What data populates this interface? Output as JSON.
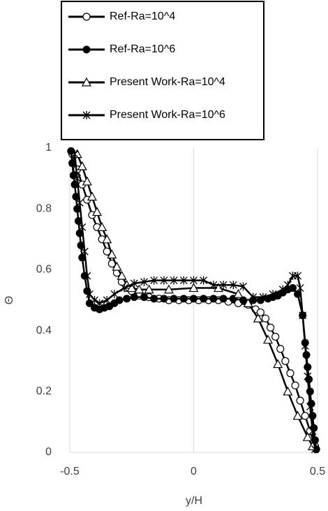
{
  "chart_data": {
    "type": "line",
    "xlabel": "y/H",
    "ylabel": "Θ",
    "xlim": [
      -0.5,
      0.5
    ],
    "xticks": [
      -0.5,
      0,
      0.5
    ],
    "ylim": [
      0,
      1
    ],
    "yticks": [
      0,
      0.2,
      0.4,
      0.6,
      0.8,
      1
    ],
    "grid": "x",
    "legend": "top",
    "series": [
      {
        "name": "Ref-Ra=10^4",
        "color": "#000000",
        "marker": "circle-open",
        "x": [
          -0.49,
          -0.47,
          -0.45,
          -0.43,
          -0.41,
          -0.39,
          -0.37,
          -0.35,
          -0.33,
          -0.31,
          -0.29,
          -0.27,
          -0.25,
          -0.22,
          -0.18,
          -0.14,
          -0.1,
          -0.06,
          -0.02,
          0.02,
          0.06,
          0.1,
          0.14,
          0.18,
          0.22,
          0.25,
          0.27,
          0.29,
          0.31,
          0.33,
          0.35,
          0.37,
          0.39,
          0.41,
          0.43,
          0.45,
          0.47,
          0.49
        ],
        "values": [
          0.98,
          0.93,
          0.88,
          0.83,
          0.78,
          0.74,
          0.7,
          0.66,
          0.62,
          0.59,
          0.56,
          0.54,
          0.53,
          0.515,
          0.51,
          0.505,
          0.5,
          0.5,
          0.5,
          0.5,
          0.5,
          0.5,
          0.495,
          0.49,
          0.485,
          0.47,
          0.46,
          0.44,
          0.41,
          0.38,
          0.34,
          0.3,
          0.26,
          0.22,
          0.17,
          0.12,
          0.07,
          0.02
        ]
      },
      {
        "name": "Ref-Ra=10^6",
        "color": "#000000",
        "marker": "circle-filled",
        "x": [
          -0.495,
          -0.49,
          -0.485,
          -0.48,
          -0.475,
          -0.47,
          -0.465,
          -0.46,
          -0.455,
          -0.45,
          -0.44,
          -0.43,
          -0.42,
          -0.4,
          -0.38,
          -0.36,
          -0.34,
          -0.32,
          -0.3,
          -0.27,
          -0.24,
          -0.2,
          -0.16,
          -0.12,
          -0.08,
          -0.04,
          0,
          0.04,
          0.08,
          0.12,
          0.16,
          0.2,
          0.24,
          0.27,
          0.3,
          0.32,
          0.34,
          0.36,
          0.38,
          0.4,
          0.42,
          0.44,
          0.45,
          0.455,
          0.46,
          0.465,
          0.47,
          0.475,
          0.48,
          0.485,
          0.49,
          0.495
        ],
        "values": [
          0.99,
          0.95,
          0.91,
          0.88,
          0.84,
          0.8,
          0.76,
          0.72,
          0.68,
          0.64,
          0.58,
          0.53,
          0.49,
          0.475,
          0.47,
          0.475,
          0.48,
          0.49,
          0.5,
          0.505,
          0.51,
          0.51,
          0.505,
          0.505,
          0.505,
          0.505,
          0.505,
          0.505,
          0.505,
          0.505,
          0.505,
          0.5,
          0.5,
          0.5,
          0.505,
          0.51,
          0.515,
          0.525,
          0.535,
          0.54,
          0.52,
          0.45,
          0.36,
          0.32,
          0.28,
          0.24,
          0.2,
          0.16,
          0.12,
          0.08,
          0.04,
          0.01
        ]
      },
      {
        "name": "Present Work-Ra=10^4",
        "color": "#000000",
        "marker": "triangle-open",
        "x": [
          -0.47,
          -0.45,
          -0.43,
          -0.41,
          -0.39,
          -0.37,
          -0.35,
          -0.33,
          -0.31,
          -0.29,
          -0.27,
          -0.25,
          -0.22,
          -0.18,
          -0.1,
          0,
          0.1,
          0.18,
          0.22,
          0.26,
          0.3,
          0.34,
          0.38,
          0.42,
          0.46,
          0.48
        ],
        "values": [
          0.98,
          0.94,
          0.89,
          0.84,
          0.79,
          0.74,
          0.7,
          0.65,
          0.61,
          0.58,
          0.55,
          0.54,
          0.535,
          0.535,
          0.535,
          0.54,
          0.54,
          0.52,
          0.49,
          0.44,
          0.37,
          0.29,
          0.2,
          0.12,
          0.05,
          0.02
        ]
      },
      {
        "name": "Present Work-Ra=10^6",
        "color": "#000000",
        "marker": "star",
        "x": [
          -0.48,
          -0.47,
          -0.46,
          -0.45,
          -0.44,
          -0.43,
          -0.42,
          -0.4,
          -0.38,
          -0.35,
          -0.32,
          -0.28,
          -0.24,
          -0.2,
          -0.16,
          -0.12,
          -0.08,
          -0.04,
          0,
          0.04,
          0.08,
          0.12,
          0.16,
          0.2,
          0.24,
          0.28,
          0.32,
          0.36,
          0.38,
          0.4,
          0.42,
          0.43,
          0.44,
          0.45,
          0.46,
          0.47,
          0.48,
          0.49
        ],
        "values": [
          0.98,
          0.9,
          0.82,
          0.74,
          0.66,
          0.58,
          0.52,
          0.5,
          0.49,
          0.5,
          0.52,
          0.54,
          0.555,
          0.56,
          0.565,
          0.565,
          0.565,
          0.565,
          0.565,
          0.565,
          0.55,
          0.55,
          0.55,
          0.545,
          0.51,
          0.51,
          0.52,
          0.535,
          0.55,
          0.58,
          0.58,
          0.54,
          0.45,
          0.35,
          0.25,
          0.15,
          0.07,
          0.01
        ]
      }
    ]
  }
}
